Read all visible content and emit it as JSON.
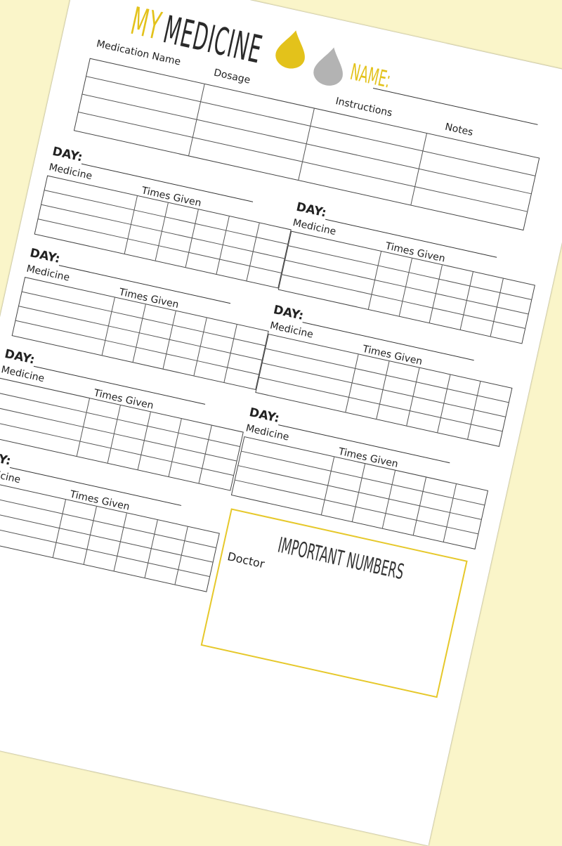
{
  "header": {
    "title_my": "MY",
    "title_medicine": "MEDICINE",
    "name_label": "NAME:"
  },
  "colors": {
    "accent": "#e3c21b",
    "drop_gray": "#b3b3b3",
    "background": "#faf5c9"
  },
  "icons": [
    "yellow-drop-icon",
    "gray-drop-icon"
  ],
  "medication_table": {
    "columns": [
      "Medication Name",
      "Dosage",
      "Instructions",
      "Notes"
    ],
    "rows": 4
  },
  "day_section": {
    "day_label": "DAY:",
    "medicine_label": "Medicine",
    "times_label": "Times Given",
    "rows": 4,
    "time_columns": 5
  },
  "important_numbers": {
    "title": "IMPORTANT NUMBERS",
    "doctor_label": "Doctor"
  }
}
